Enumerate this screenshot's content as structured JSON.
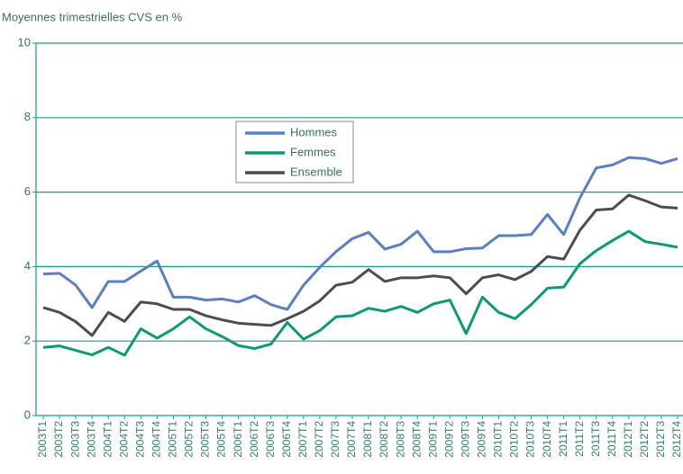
{
  "chart_data": {
    "type": "line",
    "title": "Moyennes trimestrielles CVS en %",
    "categories": [
      "2003T1",
      "2003T2",
      "2003T3",
      "2003T4",
      "2004T1",
      "2004T2",
      "2004T3",
      "2004T4",
      "2005T1",
      "2005T2",
      "2005T3",
      "2005T4",
      "2006T1",
      "2006T2",
      "2006T3",
      "2006T4",
      "2007T1",
      "2007T2",
      "2007T3",
      "2007T4",
      "2008T1",
      "2008T2",
      "2008T3",
      "2008T4",
      "2009T1",
      "2009T2",
      "2009T3",
      "2009T4",
      "2010T1",
      "2010T2",
      "2010T3",
      "2010T4",
      "2011T1",
      "2011T2",
      "2011T3",
      "2011T4",
      "2012T1",
      "2012T2",
      "2012T3",
      "2012T4"
    ],
    "series": [
      {
        "name": "Hommes",
        "color": "#5a7fc2",
        "values": [
          3.8,
          3.82,
          3.5,
          2.9,
          3.6,
          3.6,
          3.88,
          4.15,
          3.18,
          3.18,
          3.1,
          3.13,
          3.05,
          3.22,
          2.98,
          2.85,
          3.5,
          3.98,
          4.4,
          4.75,
          4.92,
          4.47,
          4.6,
          4.95,
          4.4,
          4.4,
          4.48,
          4.5,
          4.83,
          4.83,
          4.86,
          5.4,
          4.86,
          5.85,
          6.65,
          6.73,
          6.93,
          6.9,
          6.77,
          6.9
        ]
      },
      {
        "name": "Femmes",
        "color": "#0b9b73",
        "values": [
          1.83,
          1.87,
          1.75,
          1.63,
          1.83,
          1.62,
          2.33,
          2.08,
          2.33,
          2.65,
          2.33,
          2.12,
          1.88,
          1.8,
          1.92,
          2.5,
          2.05,
          2.28,
          2.65,
          2.68,
          2.88,
          2.8,
          2.93,
          2.77,
          3.0,
          3.1,
          2.2,
          3.18,
          2.77,
          2.6,
          2.98,
          3.42,
          3.45,
          4.08,
          4.43,
          4.7,
          4.95,
          4.67,
          4.6,
          4.52
        ]
      },
      {
        "name": "Ensemble",
        "color": "#4d4d4d",
        "values": [
          2.9,
          2.77,
          2.52,
          2.15,
          2.77,
          2.53,
          3.05,
          3.0,
          2.85,
          2.85,
          2.68,
          2.57,
          2.48,
          2.45,
          2.42,
          2.6,
          2.8,
          3.08,
          3.5,
          3.58,
          3.92,
          3.6,
          3.7,
          3.7,
          3.75,
          3.7,
          3.27,
          3.7,
          3.78,
          3.65,
          3.87,
          4.27,
          4.2,
          4.98,
          5.52,
          5.55,
          5.92,
          5.77,
          5.6,
          5.57
        ]
      }
    ],
    "ylim": [
      0,
      10
    ],
    "yticks": [
      0,
      2,
      4,
      6,
      8,
      10
    ],
    "grid": true,
    "grid_color": "#1a9a8a"
  }
}
